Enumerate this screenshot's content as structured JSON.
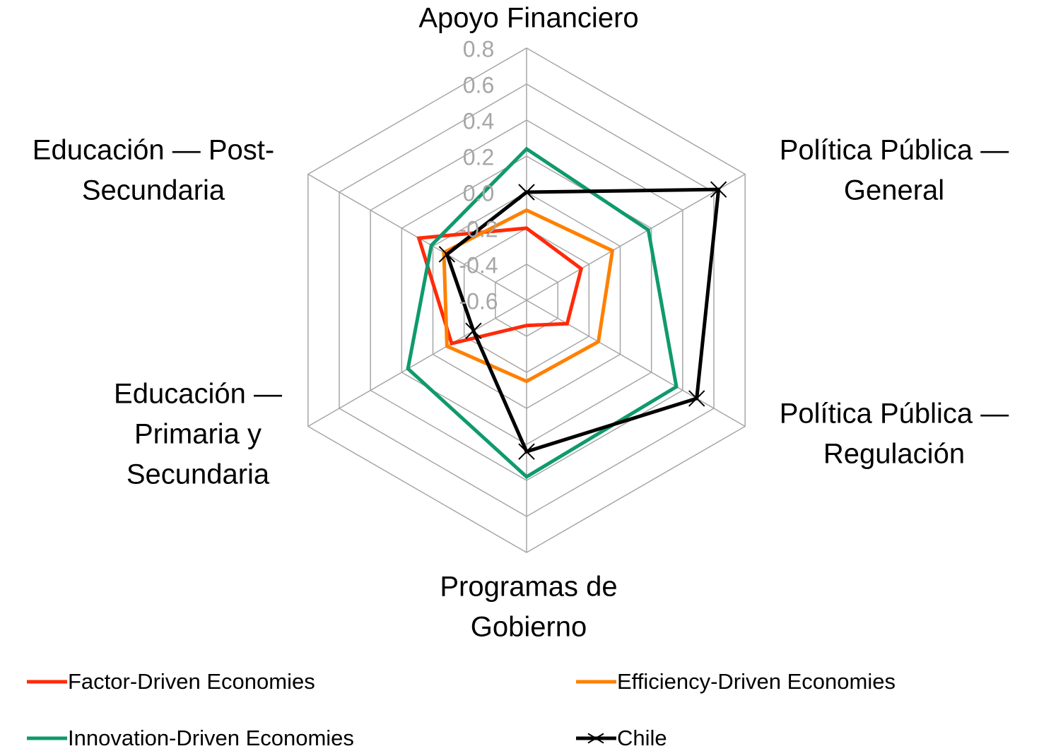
{
  "chart_data": {
    "type": "radar",
    "categories": [
      [
        "Apoyo Financiero"
      ],
      [
        "Política Pública —",
        "General"
      ],
      [
        "Política Pública —",
        "Regulación"
      ],
      [
        "Programas de",
        "Gobierno"
      ],
      [
        "Educación —",
        "Primaria y",
        "Secundaria"
      ],
      [
        "Educación — Post-",
        "Secundaria"
      ]
    ],
    "ylim": [
      -0.6,
      0.8
    ],
    "yticks": [
      -0.6,
      -0.4,
      -0.2,
      {
        "value": 0,
        "label": "0.0"
      },
      0.2,
      0.4,
      0.6,
      0.8
    ],
    "grid": true,
    "series": [
      {
        "name": "Factor-Driven Economies",
        "color": "#ff2a0a",
        "values": [
          -0.2,
          -0.25,
          -0.34,
          -0.46,
          -0.12,
          0.09
        ]
      },
      {
        "name": "Efficiency-Driven Economies",
        "color": "#ff8000",
        "values": [
          -0.1,
          -0.05,
          -0.14,
          -0.15,
          -0.09,
          -0.07
        ]
      },
      {
        "name": "Innovation-Driven Economies",
        "color": "#0f9a6e",
        "values": [
          0.24,
          0.18,
          0.36,
          0.38,
          0.16,
          0.01
        ]
      },
      {
        "name": "Chile",
        "color": "#000000",
        "marker": "x",
        "values": [
          0.0,
          0.63,
          0.49,
          0.24,
          -0.26,
          -0.09
        ]
      }
    ]
  }
}
